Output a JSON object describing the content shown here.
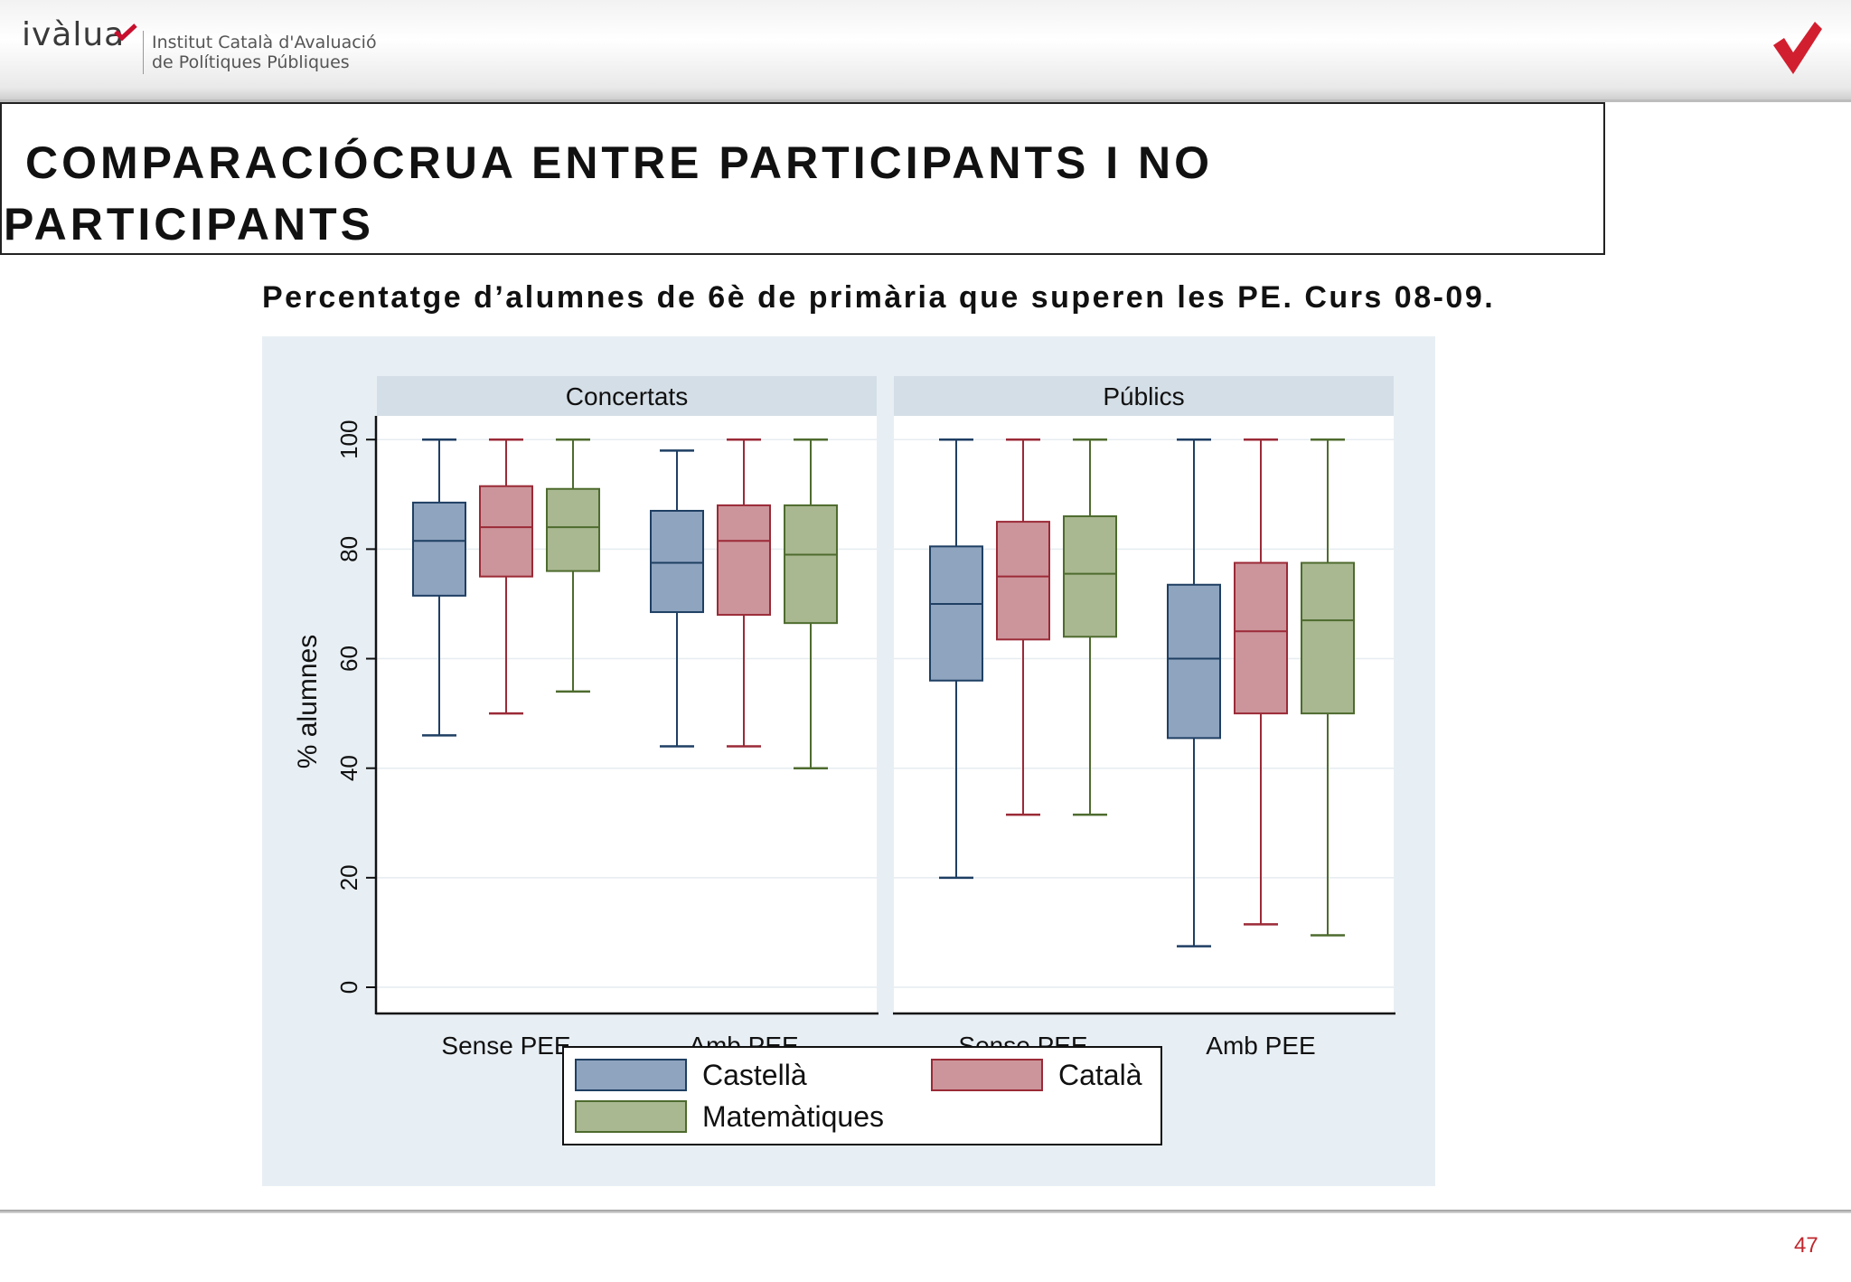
{
  "header": {
    "brand_name": "ivàlua",
    "brand_line1": "Institut Català d'Avaluació",
    "brand_line2": "de Polítiques Públiques",
    "accent_color": "#c8102e"
  },
  "title": {
    "line1": "COMPARACIÓCRUA ENTRE PARTICIPANTS I NO",
    "line2": "PARTICIPANTS"
  },
  "subtitle": "Percentatge d’alumnes de 6è de primària que superen les PE. Curs 08-09.",
  "page_number": "47",
  "chart_data": {
    "type": "boxplot",
    "ylabel": "% alumnes",
    "ylim": [
      0,
      104
    ],
    "yticks": [
      "0",
      "20",
      "40",
      "60",
      "80",
      "100"
    ],
    "grid": true,
    "legend_position": "bottom",
    "panels": [
      {
        "title": "Concertats",
        "groups": [
          {
            "label": "Sense PEE",
            "boxes": [
              {
                "series": "Castellà",
                "min": 46,
                "q1": 71.5,
                "median": 81.5,
                "q3": 88.5,
                "max": 100
              },
              {
                "series": "Català",
                "min": 50,
                "q1": 75,
                "median": 84,
                "q3": 91.5,
                "max": 100
              },
              {
                "series": "Matemàtiques",
                "min": 54,
                "q1": 76,
                "median": 84,
                "q3": 91,
                "max": 100
              }
            ]
          },
          {
            "label": "Amb PEE",
            "boxes": [
              {
                "series": "Castellà",
                "min": 44,
                "q1": 68.5,
                "median": 77.5,
                "q3": 87,
                "max": 98
              },
              {
                "series": "Català",
                "min": 44,
                "q1": 68,
                "median": 81.5,
                "q3": 88,
                "max": 100
              },
              {
                "series": "Matemàtiques",
                "min": 40,
                "q1": 66.5,
                "median": 79,
                "q3": 88,
                "max": 100
              }
            ]
          }
        ]
      },
      {
        "title": "Públics",
        "groups": [
          {
            "label": "Sense PEE",
            "boxes": [
              {
                "series": "Castellà",
                "min": 20,
                "q1": 56,
                "median": 70,
                "q3": 80.5,
                "max": 100
              },
              {
                "series": "Català",
                "min": 31.5,
                "q1": 63.5,
                "median": 75,
                "q3": 85,
                "max": 100
              },
              {
                "series": "Matemàtiques",
                "min": 31.5,
                "q1": 64,
                "median": 75.5,
                "q3": 86,
                "max": 100
              }
            ]
          },
          {
            "label": "Amb PEE",
            "boxes": [
              {
                "series": "Castellà",
                "min": 7.5,
                "q1": 45.5,
                "median": 60,
                "q3": 73.5,
                "max": 100
              },
              {
                "series": "Català",
                "min": 11.5,
                "q1": 50,
                "median": 65,
                "q3": 77.5,
                "max": 100
              },
              {
                "series": "Matemàtiques",
                "min": 9.5,
                "q1": 50,
                "median": 67,
                "q3": 77.5,
                "max": 100
              }
            ]
          }
        ]
      }
    ],
    "series": [
      {
        "name": "Castellà",
        "fill": "#8fa4bf",
        "stroke": "#1f3f63"
      },
      {
        "name": "Català",
        "fill": "#cc959b",
        "stroke": "#9b2a37"
      },
      {
        "name": "Matemàtiques",
        "fill": "#a9b891",
        "stroke": "#4e6b2e"
      }
    ]
  }
}
